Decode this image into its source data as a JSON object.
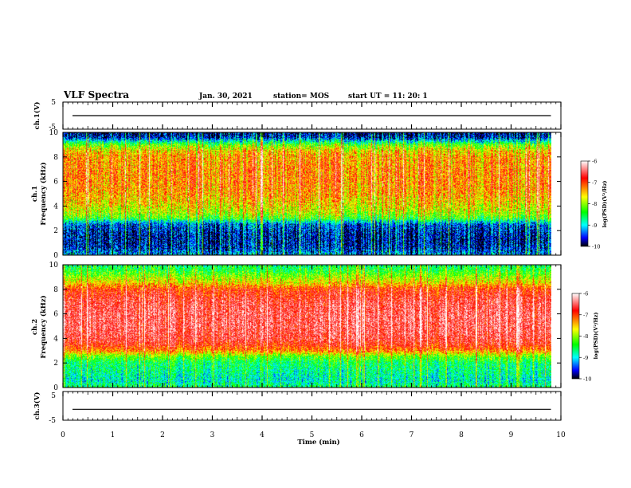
{
  "header": {
    "title": "VLF Spectra",
    "date": "Jan. 30, 2021",
    "station": "station= MOS",
    "start_ut": "start  UT =   11: 20: 1"
  },
  "chart_data": [
    {
      "type": "line",
      "panel": "ch1-waveform",
      "ylabel": "ch.1(V)",
      "ylim": [
        -5,
        5
      ],
      "yticks": [
        "5",
        "-5"
      ],
      "series": [
        {
          "values": [
            0,
            0
          ]
        }
      ],
      "x": [
        0,
        9.8
      ]
    },
    {
      "type": "heatmap",
      "panel": "ch1-spectrogram",
      "ylabel": "ch.1\nFrequency (kHz)",
      "ylim": [
        0,
        10
      ],
      "yticks": [
        "0",
        "2",
        "4",
        "6",
        "8",
        "10"
      ],
      "xlim": [
        0,
        9.8
      ],
      "profile_freq_khz": [
        0,
        0.5,
        1,
        1.5,
        2,
        2.5,
        3,
        3.5,
        4,
        5,
        6,
        7,
        8,
        8.5,
        9,
        9.3,
        9.6,
        10
      ],
      "profile_log_psd": [
        -9.2,
        -9.6,
        -9.7,
        -9.7,
        -9.6,
        -9.4,
        -8.3,
        -7.9,
        -7.7,
        -7.4,
        -7.3,
        -7.3,
        -7.4,
        -7.6,
        -8.2,
        -8.9,
        -9.6,
        -9.8
      ],
      "colorbar": {
        "label": "log(PSD)(V²/Hz)",
        "ticks": [
          "-6",
          "-7",
          "-8",
          "-9",
          "-10"
        ],
        "range": [
          -10,
          -6
        ]
      }
    },
    {
      "type": "heatmap",
      "panel": "ch2-spectrogram",
      "ylabel": "ch.2\nFrequency (kHz)",
      "ylim": [
        0,
        10
      ],
      "yticks": [
        "0",
        "2",
        "4",
        "6",
        "8",
        "10"
      ],
      "xlim": [
        0,
        9.8
      ],
      "profile_freq_khz": [
        0,
        0.5,
        1,
        1.5,
        2,
        2.5,
        3,
        3.5,
        4,
        5,
        6,
        7,
        8,
        8.5,
        9,
        9.5,
        10
      ],
      "profile_log_psd": [
        -8.6,
        -8.9,
        -8.8,
        -8.7,
        -8.6,
        -8.2,
        -7.3,
        -6.9,
        -6.7,
        -6.6,
        -6.6,
        -6.7,
        -7.0,
        -7.6,
        -8.0,
        -8.4,
        -8.6
      ],
      "colorbar": {
        "label": "log(PSD)(V²/Hz)",
        "ticks": [
          "-6",
          "-7",
          "-8",
          "-9",
          "-10"
        ],
        "range": [
          -10,
          -6
        ]
      }
    },
    {
      "type": "line",
      "panel": "ch3-waveform",
      "ylabel": "ch.3(V)",
      "ylim": [
        -5,
        5
      ],
      "yticks": [
        "5",
        "-5"
      ],
      "series": [
        {
          "values": [
            -1.2,
            -1.2
          ]
        }
      ],
      "x": [
        0,
        9.8
      ]
    }
  ],
  "xaxis": {
    "label": "Time (min)",
    "ticks": [
      "0",
      "1",
      "2",
      "3",
      "4",
      "5",
      "6",
      "7",
      "8",
      "9",
      "10"
    ],
    "range": [
      0,
      10
    ]
  },
  "colors": {
    "cmap": [
      "#ffffff",
      "#ff0000",
      "#ffff00",
      "#00ff00",
      "#00ffff",
      "#0000ff",
      "#000000"
    ]
  }
}
